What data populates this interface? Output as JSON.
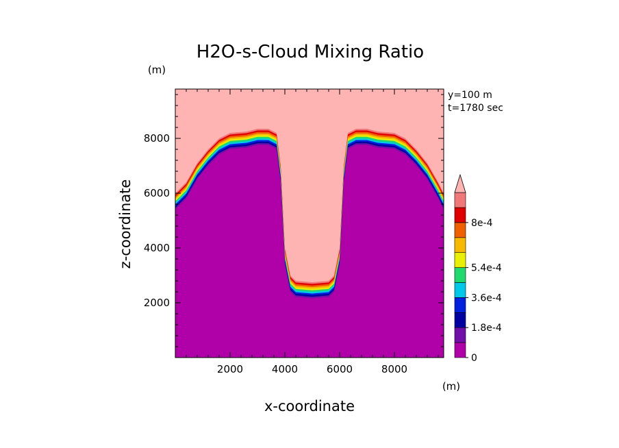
{
  "chart_data": {
    "type": "heatmap",
    "title": "H2O-s-Cloud Mixing Ratio",
    "xlabel": "x-coordinate",
    "ylabel": "z-coordinate",
    "x_unit": "(m)",
    "y_unit": "(m)",
    "annotations": [
      "y=100 m",
      "t=1780 sec"
    ],
    "xlim": [
      0,
      9800
    ],
    "ylim": [
      0,
      9800
    ],
    "x_ticks": [
      2000,
      4000,
      6000,
      8000
    ],
    "y_ticks": [
      2000,
      4000,
      6000,
      8000
    ],
    "x_tick_labels": [
      "2000",
      "4000",
      "6000",
      "8000"
    ],
    "y_tick_labels": [
      "2000",
      "4000",
      "6000",
      "8000"
    ],
    "colorbar": {
      "levels": [
        0,
        9e-05,
        0.00018,
        0.00027,
        0.00036,
        0.00045,
        0.00054,
        0.00063,
        0.00072,
        0.0008
      ],
      "tick_labels": [
        "0",
        "1.8e-4",
        "3.6e-4",
        "5.4e-4",
        "8e-4"
      ],
      "tick_values": [
        0,
        0.00018,
        0.00036,
        0.00054,
        0.0008
      ],
      "colors": [
        "#b000a8",
        "#7010a8",
        "#0000a0",
        "#0020e0",
        "#00c8e8",
        "#20d870",
        "#e8f000",
        "#f8b800",
        "#f06000",
        "#e00000",
        "#f07878"
      ],
      "over_color": "#ffb4b4",
      "extend": "max"
    },
    "contours": {
      "note_free": true,
      "boundary_top_z": [
        [
          0,
          6000
        ],
        [
          400,
          6400
        ],
        [
          800,
          7100
        ],
        [
          1200,
          7600
        ],
        [
          1600,
          8000
        ],
        [
          2000,
          8200
        ],
        [
          2600,
          8250
        ],
        [
          3000,
          8350
        ],
        [
          3400,
          8350
        ],
        [
          3700,
          8200
        ],
        [
          3850,
          7000
        ],
        [
          4000,
          4000
        ],
        [
          4200,
          3000
        ],
        [
          4400,
          2800
        ],
        [
          5000,
          2750
        ],
        [
          5600,
          2800
        ],
        [
          5800,
          3000
        ],
        [
          6000,
          4000
        ],
        [
          6150,
          7000
        ],
        [
          6300,
          8200
        ],
        [
          6600,
          8350
        ],
        [
          7000,
          8350
        ],
        [
          7400,
          8250
        ],
        [
          8000,
          8200
        ],
        [
          8400,
          8000
        ],
        [
          8800,
          7600
        ],
        [
          9200,
          7100
        ],
        [
          9600,
          6400
        ],
        [
          9800,
          6000
        ]
      ],
      "band_depth_m": 650
    }
  }
}
